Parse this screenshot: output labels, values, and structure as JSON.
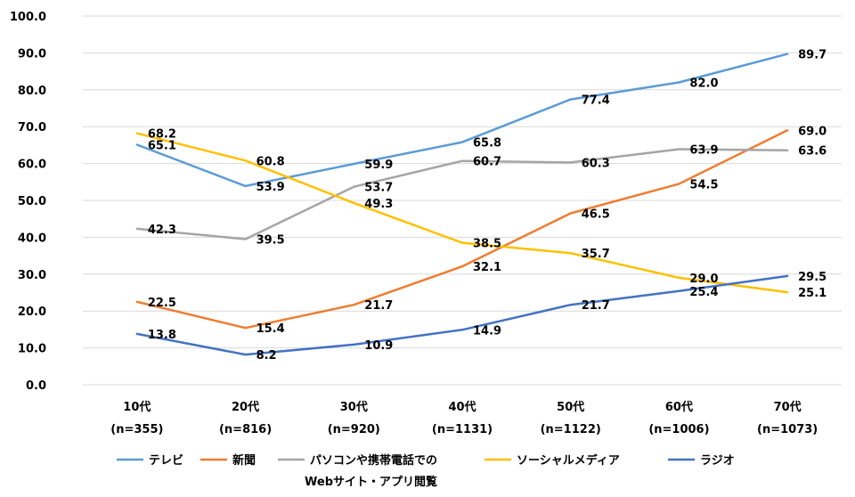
{
  "chart_data": {
    "type": "line",
    "ylim": [
      0,
      100
    ],
    "yticks": [
      "0.0",
      "10.0",
      "20.0",
      "30.0",
      "40.0",
      "50.0",
      "60.0",
      "70.0",
      "80.0",
      "90.0",
      "100.0"
    ],
    "grid": true,
    "legend_position": "bottom",
    "categories": [
      [
        "10代",
        "(n=355)"
      ],
      [
        "20代",
        "(n=816)"
      ],
      [
        "30代",
        "(n=920)"
      ],
      [
        "40代",
        "(n=1131)"
      ],
      [
        "50代",
        "(n=1122)"
      ],
      [
        "60代",
        "(n=1006)"
      ],
      [
        "70代",
        "(n=1073)"
      ]
    ],
    "series": [
      {
        "name": "テレビ",
        "color": "#5b9bd5",
        "values": [
          65.1,
          53.9,
          59.9,
          65.8,
          77.4,
          82.0,
          89.7
        ]
      },
      {
        "name": "新聞",
        "color": "#ed7d31",
        "values": [
          22.5,
          15.4,
          21.7,
          32.1,
          46.5,
          54.5,
          69.0
        ]
      },
      {
        "name": "パソコンや携帯電話でのWebサイト・アプリ閲覧",
        "legend_lines": [
          "パソコンや携帯電話での",
          "Webサイト・アプリ閲覧"
        ],
        "color": "#a5a5a5",
        "values": [
          42.3,
          39.5,
          53.7,
          60.7,
          60.3,
          63.9,
          63.6
        ]
      },
      {
        "name": "ソーシャルメディア",
        "color": "#ffc000",
        "values": [
          68.2,
          60.8,
          49.3,
          38.5,
          35.7,
          29.0,
          25.1
        ]
      },
      {
        "name": "ラジオ",
        "color": "#4472c4",
        "values": [
          13.8,
          8.2,
          10.9,
          14.9,
          21.7,
          25.4,
          29.5
        ]
      }
    ]
  }
}
